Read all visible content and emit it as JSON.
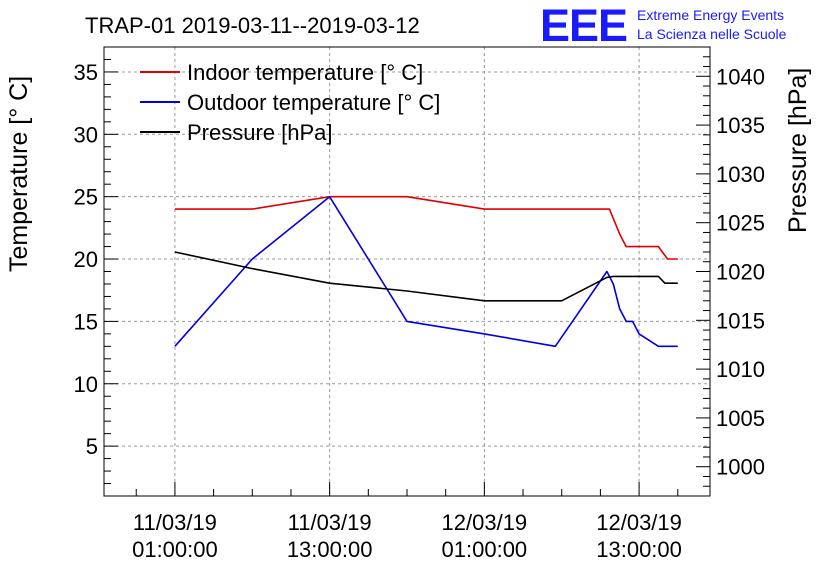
{
  "chart_data": {
    "type": "line",
    "title": "TRAP-01 2019-03-11--2019-03-12",
    "branding": {
      "logo_text": "EEE",
      "line1": "Extreme Energy Events",
      "line2": "La Scienza nelle Scuole",
      "color": "#1a1aff"
    },
    "ylabel": "Temperature [° C]",
    "y2label": "Pressure [hPa]",
    "ylim": [
      1,
      37
    ],
    "y2lim": [
      997,
      1043
    ],
    "xlim": [
      -4.5,
      42.5
    ],
    "x_units": "hours since 2019-03-11 00:00",
    "yticks": [
      5,
      10,
      15,
      20,
      25,
      30,
      35
    ],
    "y2ticks": [
      1000,
      1005,
      1010,
      1015,
      1020,
      1025,
      1030,
      1035,
      1040
    ],
    "xticks": [
      {
        "x": 1,
        "label1": "11/03/19",
        "label2": "01:00:00"
      },
      {
        "x": 13,
        "label1": "11/03/19",
        "label2": "13:00:00"
      },
      {
        "x": 25,
        "label1": "12/03/19",
        "label2": "01:00:00"
      },
      {
        "x": 37,
        "label1": "12/03/19",
        "label2": "13:00:00"
      }
    ],
    "grid": true,
    "legend_position": "top-left",
    "series": [
      {
        "name": "Indoor temperature [° C]",
        "color": "#e00000",
        "axis": "left",
        "x": [
          1,
          7,
          13,
          19,
          25,
          31,
          34.7,
          35.5,
          36,
          37,
          38.5,
          39.2,
          40
        ],
        "y": [
          24,
          24,
          25,
          25,
          24,
          24,
          24,
          22,
          21,
          21,
          21,
          20,
          20
        ]
      },
      {
        "name": "Outdoor temperature [° C]",
        "color": "#0000e0",
        "axis": "left",
        "x": [
          1,
          7,
          13,
          19,
          25,
          30.5,
          34.5,
          35,
          35.5,
          36,
          36.5,
          37,
          38.5,
          40
        ],
        "y": [
          13,
          20,
          25,
          15,
          14,
          13,
          19,
          18,
          16,
          15,
          15,
          14,
          13,
          13
        ]
      },
      {
        "name": "Pressure [hPa]",
        "color": "#000000",
        "axis": "right",
        "x": [
          1,
          7,
          13,
          19,
          25,
          31,
          34.5,
          35,
          37,
          38.5,
          39,
          40
        ],
        "y": [
          1022,
          1020.3,
          1018.8,
          1018,
          1017,
          1017,
          1019.4,
          1019.5,
          1019.5,
          1019.5,
          1018.8,
          1018.8
        ]
      }
    ]
  }
}
